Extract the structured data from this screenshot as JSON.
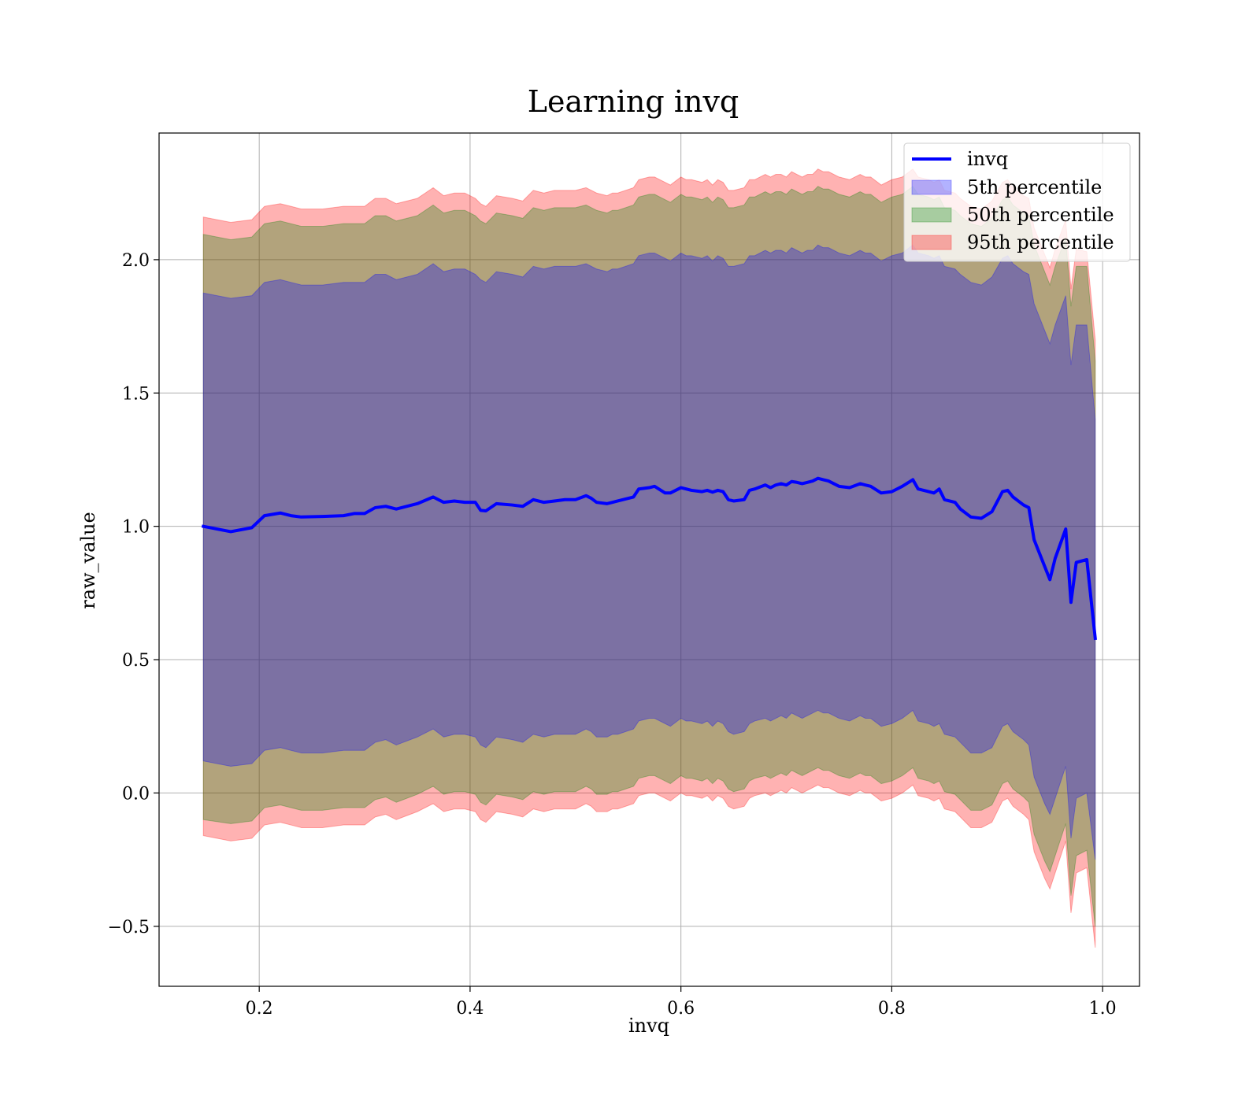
{
  "chart_data": {
    "type": "area",
    "title": "Learning invq",
    "xlabel": "invq",
    "ylabel": "raw_value",
    "xlim": [
      0.105,
      1.035
    ],
    "ylim": [
      -0.725,
      2.475
    ],
    "x_ticks": [
      0.2,
      0.4,
      0.6,
      0.8,
      1.0
    ],
    "x_tick_labels": [
      "0.2",
      "0.4",
      "0.6",
      "0.8",
      "1.0"
    ],
    "y_ticks": [
      -0.5,
      0.0,
      0.5,
      1.0,
      1.5,
      2.0
    ],
    "y_tick_labels": [
      "−0.5",
      "0.0",
      "0.5",
      "1.0",
      "1.5",
      "2.0"
    ],
    "grid": true,
    "legend_position": "top-right",
    "colors": {
      "line": "#0000ff",
      "band_5th": "#0000ff",
      "band_50th": "#008000",
      "band_95th": "#ff0000"
    },
    "x": [
      0.147,
      0.173,
      0.193,
      0.205,
      0.22,
      0.23,
      0.24,
      0.26,
      0.28,
      0.29,
      0.3,
      0.31,
      0.32,
      0.33,
      0.35,
      0.365,
      0.375,
      0.385,
      0.395,
      0.405,
      0.41,
      0.415,
      0.425,
      0.44,
      0.45,
      0.46,
      0.47,
      0.48,
      0.49,
      0.5,
      0.51,
      0.515,
      0.52,
      0.53,
      0.535,
      0.54,
      0.555,
      0.56,
      0.57,
      0.575,
      0.585,
      0.59,
      0.6,
      0.605,
      0.61,
      0.62,
      0.625,
      0.63,
      0.635,
      0.64,
      0.645,
      0.65,
      0.66,
      0.665,
      0.67,
      0.68,
      0.685,
      0.69,
      0.695,
      0.7,
      0.705,
      0.71,
      0.715,
      0.72,
      0.725,
      0.73,
      0.735,
      0.74,
      0.75,
      0.76,
      0.77,
      0.775,
      0.78,
      0.79,
      0.8,
      0.81,
      0.82,
      0.825,
      0.835,
      0.84,
      0.845,
      0.85,
      0.86,
      0.865,
      0.875,
      0.885,
      0.895,
      0.905,
      0.91,
      0.915,
      0.925,
      0.93,
      0.935,
      0.945,
      0.95,
      0.955,
      0.965,
      0.97,
      0.975,
      0.985,
      0.993
    ],
    "series": [
      {
        "name": "invq",
        "kind": "line",
        "values": [
          1.0,
          0.98,
          0.995,
          1.04,
          1.05,
          1.04,
          1.035,
          1.037,
          1.04,
          1.048,
          1.048,
          1.07,
          1.075,
          1.065,
          1.085,
          1.11,
          1.09,
          1.095,
          1.09,
          1.09,
          1.06,
          1.058,
          1.085,
          1.08,
          1.075,
          1.1,
          1.09,
          1.095,
          1.1,
          1.1,
          1.115,
          1.105,
          1.09,
          1.085,
          1.09,
          1.095,
          1.11,
          1.14,
          1.145,
          1.15,
          1.125,
          1.125,
          1.145,
          1.14,
          1.135,
          1.13,
          1.135,
          1.128,
          1.135,
          1.13,
          1.1,
          1.095,
          1.1,
          1.135,
          1.14,
          1.155,
          1.145,
          1.155,
          1.16,
          1.155,
          1.168,
          1.165,
          1.16,
          1.165,
          1.17,
          1.18,
          1.175,
          1.17,
          1.15,
          1.145,
          1.16,
          1.155,
          1.15,
          1.125,
          1.13,
          1.15,
          1.175,
          1.14,
          1.13,
          1.125,
          1.14,
          1.1,
          1.09,
          1.065,
          1.035,
          1.03,
          1.055,
          1.13,
          1.135,
          1.11,
          1.08,
          1.07,
          0.95,
          0.85,
          0.8,
          0.88,
          0.99,
          0.715,
          0.865,
          0.875,
          0.58
        ]
      },
      {
        "name": "95th percentile",
        "kind": "band",
        "upper": [
          2.16,
          2.14,
          2.15,
          2.2,
          2.21,
          2.2,
          2.19,
          2.19,
          2.2,
          2.2,
          2.2,
          2.23,
          2.23,
          2.21,
          2.23,
          2.27,
          2.24,
          2.25,
          2.25,
          2.23,
          2.21,
          2.2,
          2.24,
          2.23,
          2.22,
          2.26,
          2.25,
          2.26,
          2.26,
          2.26,
          2.27,
          2.26,
          2.25,
          2.24,
          2.25,
          2.25,
          2.27,
          2.3,
          2.31,
          2.31,
          2.29,
          2.28,
          2.31,
          2.3,
          2.3,
          2.29,
          2.3,
          2.28,
          2.3,
          2.29,
          2.26,
          2.26,
          2.27,
          2.3,
          2.3,
          2.32,
          2.31,
          2.32,
          2.32,
          2.31,
          2.33,
          2.32,
          2.31,
          2.32,
          2.32,
          2.34,
          2.33,
          2.33,
          2.31,
          2.3,
          2.32,
          2.31,
          2.31,
          2.28,
          2.3,
          2.31,
          2.34,
          2.31,
          2.3,
          2.29,
          2.3,
          2.26,
          2.25,
          2.23,
          2.2,
          2.19,
          2.22,
          2.29,
          2.3,
          2.27,
          2.24,
          2.23,
          2.12,
          2.02,
          1.97,
          2.04,
          2.15,
          1.89,
          2.04,
          2.03,
          1.7
        ],
        "lower": [
          -0.16,
          -0.18,
          -0.17,
          -0.12,
          -0.11,
          -0.12,
          -0.13,
          -0.13,
          -0.12,
          -0.12,
          -0.12,
          -0.09,
          -0.08,
          -0.1,
          -0.07,
          -0.04,
          -0.07,
          -0.06,
          -0.06,
          -0.07,
          -0.1,
          -0.11,
          -0.07,
          -0.08,
          -0.09,
          -0.06,
          -0.07,
          -0.06,
          -0.06,
          -0.06,
          -0.04,
          -0.05,
          -0.07,
          -0.07,
          -0.06,
          -0.06,
          -0.04,
          -0.01,
          0.0,
          0.0,
          -0.02,
          -0.03,
          0.0,
          -0.01,
          -0.01,
          -0.02,
          -0.01,
          -0.03,
          -0.01,
          -0.02,
          -0.05,
          -0.06,
          -0.05,
          -0.02,
          -0.01,
          0.0,
          -0.01,
          0.0,
          0.01,
          0.0,
          0.02,
          0.01,
          0.0,
          0.01,
          0.02,
          0.03,
          0.02,
          0.02,
          0.0,
          -0.01,
          0.01,
          0.0,
          0.0,
          -0.03,
          -0.02,
          0.0,
          0.03,
          -0.01,
          -0.02,
          -0.03,
          -0.02,
          -0.06,
          -0.07,
          -0.09,
          -0.13,
          -0.13,
          -0.11,
          -0.03,
          -0.02,
          -0.05,
          -0.08,
          -0.1,
          -0.22,
          -0.32,
          -0.36,
          -0.3,
          -0.18,
          -0.45,
          -0.3,
          -0.28,
          -0.58
        ]
      },
      {
        "name": "50th percentile",
        "kind": "band",
        "upper": [
          2.095,
          2.075,
          2.085,
          2.135,
          2.145,
          2.135,
          2.125,
          2.125,
          2.135,
          2.135,
          2.135,
          2.165,
          2.165,
          2.145,
          2.165,
          2.205,
          2.175,
          2.185,
          2.185,
          2.165,
          2.145,
          2.135,
          2.175,
          2.165,
          2.155,
          2.195,
          2.185,
          2.195,
          2.195,
          2.195,
          2.205,
          2.195,
          2.185,
          2.175,
          2.185,
          2.185,
          2.205,
          2.235,
          2.245,
          2.245,
          2.225,
          2.215,
          2.245,
          2.235,
          2.235,
          2.225,
          2.235,
          2.215,
          2.235,
          2.225,
          2.195,
          2.195,
          2.205,
          2.235,
          2.235,
          2.255,
          2.245,
          2.255,
          2.255,
          2.245,
          2.265,
          2.255,
          2.245,
          2.255,
          2.255,
          2.275,
          2.265,
          2.265,
          2.245,
          2.235,
          2.255,
          2.245,
          2.245,
          2.215,
          2.235,
          2.245,
          2.275,
          2.245,
          2.235,
          2.225,
          2.235,
          2.195,
          2.185,
          2.165,
          2.135,
          2.125,
          2.155,
          2.225,
          2.235,
          2.205,
          2.175,
          2.165,
          2.055,
          1.955,
          1.905,
          1.975,
          2.085,
          1.825,
          1.975,
          1.975,
          1.62
        ],
        "lower": [
          -0.1,
          -0.115,
          -0.105,
          -0.055,
          -0.045,
          -0.055,
          -0.065,
          -0.065,
          -0.055,
          -0.055,
          -0.055,
          -0.025,
          -0.015,
          -0.035,
          -0.005,
          0.025,
          -0.005,
          0.005,
          0.005,
          -0.005,
          -0.035,
          -0.045,
          -0.005,
          -0.015,
          -0.025,
          0.005,
          -0.005,
          0.005,
          0.005,
          0.005,
          0.025,
          0.015,
          -0.005,
          -0.005,
          0.005,
          0.005,
          0.025,
          0.055,
          0.065,
          0.065,
          0.045,
          0.035,
          0.065,
          0.055,
          0.055,
          0.045,
          0.055,
          0.035,
          0.055,
          0.045,
          0.015,
          0.005,
          0.015,
          0.045,
          0.055,
          0.065,
          0.055,
          0.065,
          0.075,
          0.065,
          0.085,
          0.075,
          0.065,
          0.075,
          0.085,
          0.095,
          0.085,
          0.085,
          0.065,
          0.055,
          0.075,
          0.065,
          0.065,
          0.035,
          0.045,
          0.065,
          0.095,
          0.055,
          0.045,
          0.035,
          0.045,
          0.005,
          -0.005,
          -0.025,
          -0.065,
          -0.065,
          -0.045,
          0.035,
          0.045,
          0.015,
          -0.015,
          -0.035,
          -0.155,
          -0.255,
          -0.295,
          -0.235,
          -0.115,
          -0.385,
          -0.235,
          -0.215,
          -0.5
        ]
      },
      {
        "name": "5th percentile",
        "kind": "band",
        "upper": [
          1.875,
          1.855,
          1.865,
          1.915,
          1.925,
          1.915,
          1.905,
          1.905,
          1.915,
          1.915,
          1.915,
          1.945,
          1.945,
          1.925,
          1.945,
          1.985,
          1.955,
          1.965,
          1.965,
          1.945,
          1.925,
          1.915,
          1.955,
          1.945,
          1.935,
          1.975,
          1.965,
          1.975,
          1.975,
          1.975,
          1.985,
          1.975,
          1.965,
          1.955,
          1.965,
          1.965,
          1.985,
          2.015,
          2.025,
          2.025,
          2.005,
          1.995,
          2.025,
          2.015,
          2.015,
          2.005,
          2.015,
          1.995,
          2.015,
          2.005,
          1.975,
          1.975,
          1.985,
          2.015,
          2.015,
          2.035,
          2.025,
          2.035,
          2.035,
          2.025,
          2.045,
          2.035,
          2.025,
          2.035,
          2.035,
          2.055,
          2.045,
          2.045,
          2.025,
          2.015,
          2.035,
          2.025,
          2.025,
          1.995,
          2.015,
          2.025,
          2.055,
          2.025,
          2.015,
          2.005,
          2.015,
          1.975,
          1.965,
          1.945,
          1.915,
          1.905,
          1.935,
          2.005,
          2.015,
          1.985,
          1.955,
          1.945,
          1.835,
          1.735,
          1.685,
          1.755,
          1.865,
          1.605,
          1.755,
          1.755,
          1.4
        ],
        "lower": [
          0.12,
          0.1,
          0.11,
          0.16,
          0.17,
          0.16,
          0.15,
          0.15,
          0.16,
          0.16,
          0.16,
          0.19,
          0.2,
          0.18,
          0.21,
          0.24,
          0.21,
          0.22,
          0.22,
          0.21,
          0.18,
          0.17,
          0.21,
          0.2,
          0.19,
          0.22,
          0.21,
          0.22,
          0.22,
          0.22,
          0.24,
          0.23,
          0.21,
          0.21,
          0.22,
          0.22,
          0.24,
          0.27,
          0.28,
          0.28,
          0.26,
          0.25,
          0.28,
          0.27,
          0.27,
          0.26,
          0.27,
          0.25,
          0.27,
          0.26,
          0.23,
          0.22,
          0.23,
          0.26,
          0.27,
          0.28,
          0.27,
          0.28,
          0.29,
          0.28,
          0.3,
          0.29,
          0.28,
          0.29,
          0.3,
          0.31,
          0.3,
          0.3,
          0.28,
          0.27,
          0.29,
          0.28,
          0.28,
          0.25,
          0.26,
          0.28,
          0.31,
          0.27,
          0.26,
          0.25,
          0.26,
          0.22,
          0.21,
          0.19,
          0.15,
          0.15,
          0.17,
          0.25,
          0.26,
          0.23,
          0.2,
          0.18,
          0.06,
          -0.04,
          -0.08,
          -0.02,
          0.1,
          -0.17,
          -0.02,
          0.0,
          -0.25
        ]
      }
    ],
    "legend": {
      "entries": [
        {
          "label": "invq",
          "kind": "line"
        },
        {
          "label": "5th percentile",
          "kind": "patch"
        },
        {
          "label": "50th percentile",
          "kind": "patch"
        },
        {
          "label": "95th percentile",
          "kind": "patch"
        }
      ]
    }
  }
}
